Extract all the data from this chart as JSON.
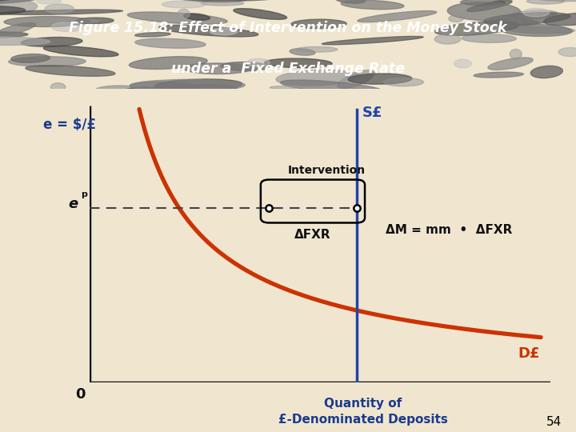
{
  "title_line1": "Figure 15.18: Effect of Intervention on the Money Stock",
  "title_line2": "under a  Fixed Exchange Rate",
  "bg_color": "#f0e6d0",
  "title_bg_color": "#707070",
  "header_bar_color": "#1a3a5c",
  "ylabel": "e = $/£",
  "xlabel_line1": "Quantity of",
  "xlabel_line2": "£-Denominated Deposits",
  "xlabel_color": "#1a3a8c",
  "ylabel_color": "#1a3a8c",
  "curve_color": "#cc3300",
  "supply_line_color": "#2244aa",
  "axis_color": "#111111",
  "dashed_color": "#444444",
  "annotation_color": "#111111",
  "slide_number": "54",
  "S_label": "S£",
  "D_label": "D£",
  "ep_label": "e",
  "ep_sup": "p",
  "intervention_label": "Intervention",
  "delta_fxr_label": "ΔFXR",
  "delta_m_label": "ΔM = mm  •  ΔFXR",
  "x_axis_min": 0,
  "x_axis_max": 10,
  "y_axis_min": 0,
  "y_axis_max": 10,
  "supply_x": 5.8,
  "ep_y": 6.3,
  "point1_x": 3.9,
  "point2_x": 5.8
}
